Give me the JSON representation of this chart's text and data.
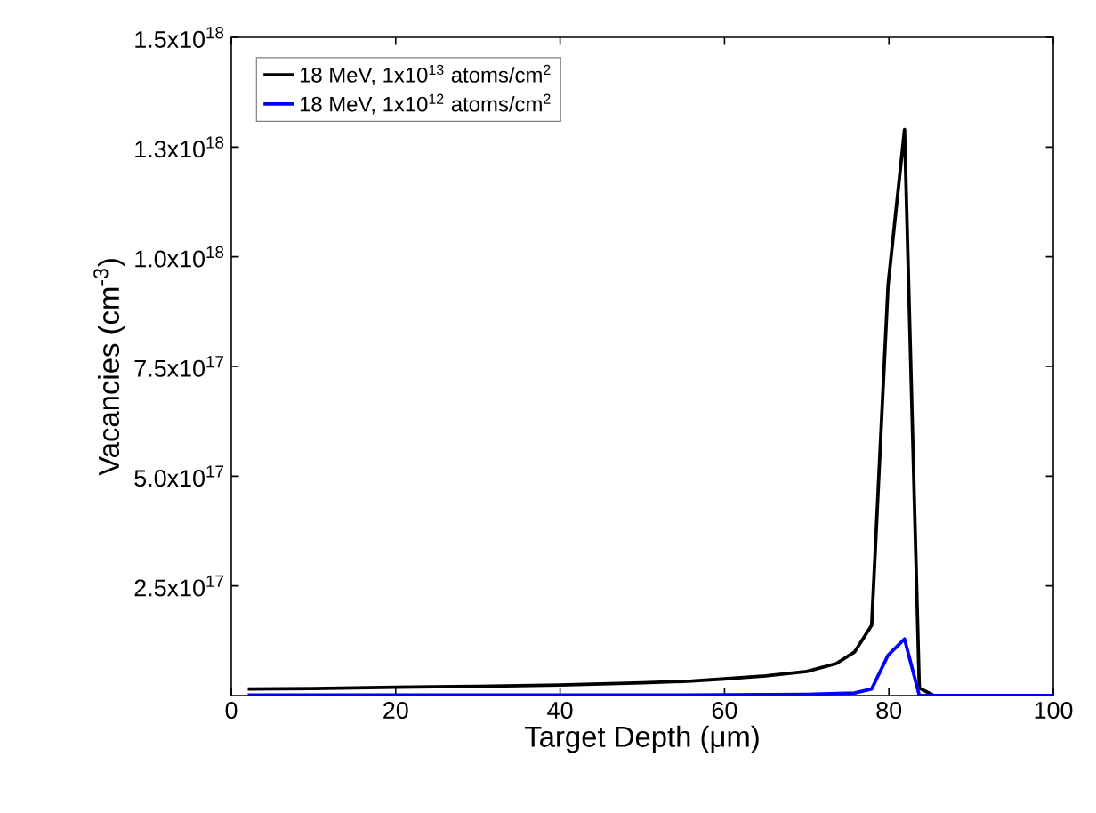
{
  "chart_data": {
    "type": "line",
    "xlabel": "Target Depth (μm)",
    "ylabel": "Vacancies (cm$^{-3}$)",
    "xlim": [
      0,
      100
    ],
    "ylim": [
      0,
      1.5e+18
    ],
    "xticks": [
      0,
      20,
      40,
      60,
      80,
      100
    ],
    "yticks": [
      {
        "value": 2.5e+17,
        "label": "2.5x10$^{17}$"
      },
      {
        "value": 5e+17,
        "label": "5.0x10$^{17}$"
      },
      {
        "value": 7.5e+17,
        "label": "7.5x10$^{17}$"
      },
      {
        "value": 1e+18,
        "label": "1.0x10$^{18}$"
      },
      {
        "value": 1.25e+18,
        "label": "1.3x10$^{18}$"
      },
      {
        "value": 1.5e+18,
        "label": "1.5x10$^{18}$"
      }
    ],
    "legend": "top left",
    "series": [
      {
        "name": "18 MeV, 1x10$^{13}$ atoms/cm$^{2}$",
        "color": "#000000",
        "x": [
          2,
          10,
          20,
          30,
          40,
          50,
          56,
          60,
          65,
          70,
          73.6,
          75.8,
          77.9,
          79.9,
          81.9,
          83.7,
          85.5,
          100
        ],
        "values": [
          1.5e+16,
          1.6e+16,
          1.9e+16,
          2.1e+16,
          2.4e+16,
          2.9e+16,
          3.3e+16,
          3.8e+16,
          4.5e+16,
          5.5e+16,
          7.3e+16,
          9.9e+16,
          1.6e+17,
          9.36e+17,
          1.29e+18,
          1.7e+16,
          0,
          0
        ]
      },
      {
        "name": "18 MeV, 1x10$^{12}$ atoms/cm$^{2}$",
        "color": "#0000ff",
        "x": [
          2,
          20,
          40,
          60,
          70,
          75.8,
          77.9,
          79.9,
          81.9,
          83.7,
          100
        ],
        "values": [
          1000000000000000.0,
          1000000000000000.0,
          1000000000000000.0,
          1500000000000000.0,
          3000000000000000.0,
          6000000000000000.0,
          1.5e+16,
          9.2e+16,
          1.29e+17,
          0,
          0
        ]
      }
    ]
  }
}
